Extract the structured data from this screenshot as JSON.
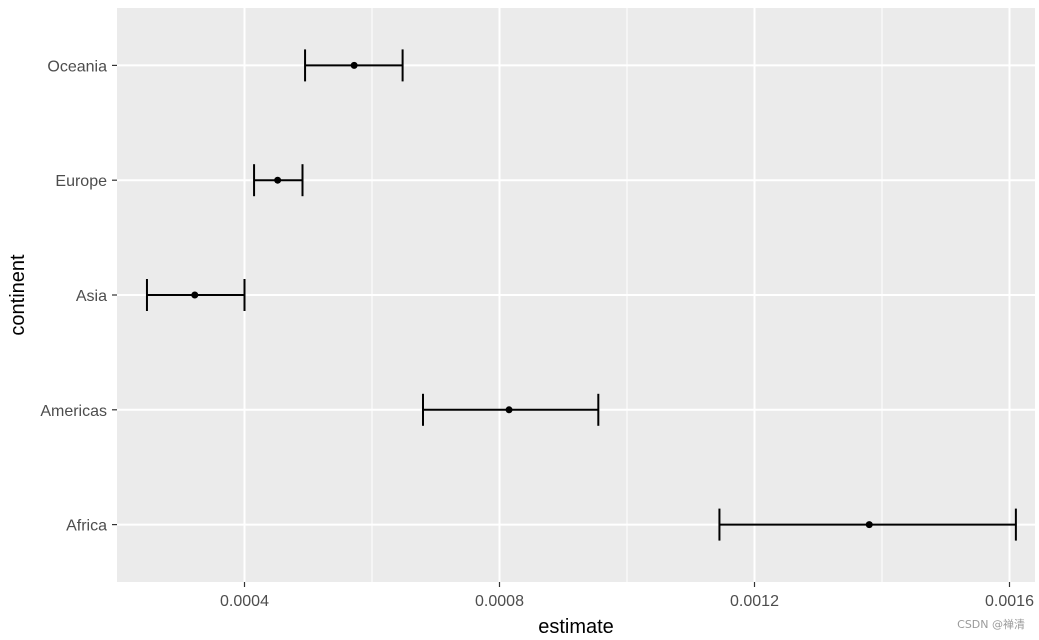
{
  "chart_data": {
    "type": "errorbar",
    "orientation": "horizontal",
    "categories": [
      "Africa",
      "Americas",
      "Asia",
      "Europe",
      "Oceania"
    ],
    "points": [
      {
        "category": "Africa",
        "estimate": 0.00138,
        "lower": 0.001145,
        "upper": 0.00161
      },
      {
        "category": "Americas",
        "estimate": 0.000815,
        "lower": 0.00068,
        "upper": 0.000955
      },
      {
        "category": "Asia",
        "estimate": 0.000322,
        "lower": 0.000247,
        "upper": 0.0004
      },
      {
        "category": "Europe",
        "estimate": 0.000452,
        "lower": 0.000415,
        "upper": 0.000491
      },
      {
        "category": "Oceania",
        "estimate": 0.000572,
        "lower": 0.000495,
        "upper": 0.000648
      }
    ],
    "xlabel": "estimate",
    "ylabel": "continent",
    "xlim": [
      0.0002,
      0.00164
    ],
    "xticks": [
      0.0004,
      0.0008,
      0.0012,
      0.0016
    ],
    "xtick_labels": [
      "0.0004",
      "0.0008",
      "0.0012",
      "0.0016"
    ],
    "grid": true,
    "colors": {
      "panel": "#ebebeb",
      "grid": "#ffffff",
      "mark": "#000000",
      "tick_text": "#4d4d4d"
    }
  },
  "watermark": "CSDN @禅清"
}
